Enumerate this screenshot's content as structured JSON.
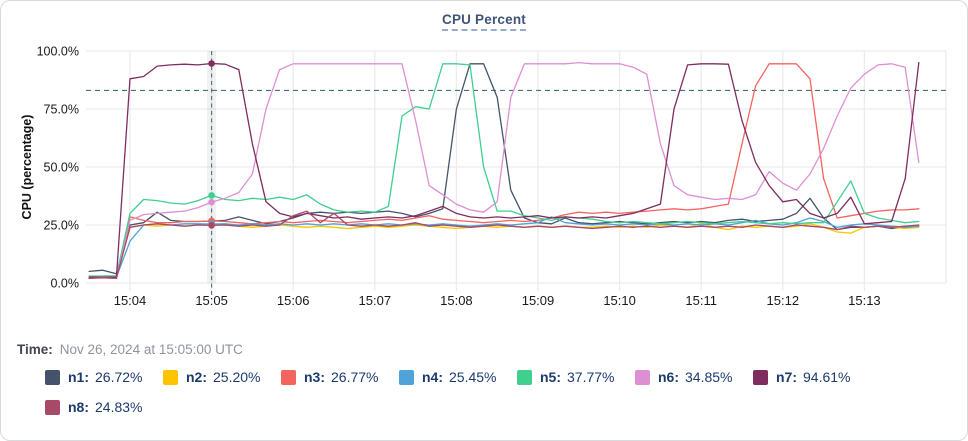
{
  "card": {
    "title": "CPU Percent"
  },
  "footer": {
    "time_label": "Time:",
    "time_value": "Nov 26, 2024 at 15:05:00 UTC"
  },
  "legend": {
    "rows": [
      [
        {
          "label": "n1:",
          "value": "26.72%",
          "color": "#44536b"
        },
        {
          "label": "n2:",
          "value": "25.20%",
          "color": "#ffc400"
        },
        {
          "label": "n3:",
          "value": "26.77%",
          "color": "#f4645f"
        },
        {
          "label": "n4:",
          "value": "25.45%",
          "color": "#4ea3d8"
        },
        {
          "label": "n5:",
          "value": "37.77%",
          "color": "#3fcf8e"
        },
        {
          "label": "n6:",
          "value": "34.85%",
          "color": "#de8fd3"
        },
        {
          "label": "n7:",
          "value": "94.61%",
          "color": "#7e2d5e"
        }
      ],
      [
        {
          "label": "n8:",
          "value": "24.83%",
          "color": "#a74a68"
        }
      ]
    ]
  },
  "chart_data": {
    "type": "line",
    "title": "CPU Percent",
    "ylabel": "CPU (percentage)",
    "ylim": [
      0,
      100
    ],
    "grid": true,
    "threshold_percent": 83,
    "crosshair": {
      "time": "15:05:00",
      "t_seconds": 60
    },
    "x_tick_labels": [
      "15:04",
      "15:05",
      "15:06",
      "15:07",
      "15:08",
      "15:09",
      "15:10",
      "15:11",
      "15:12",
      "15:13"
    ],
    "y_ticks": [
      {
        "value": 100,
        "label": "100.0%"
      },
      {
        "value": 75,
        "label": "75.0%"
      },
      {
        "value": 50,
        "label": "50.0%"
      },
      {
        "value": 25,
        "label": "25.0%"
      },
      {
        "value": 0,
        "label": "0.0%"
      }
    ],
    "x_start_seconds": -30,
    "sample_interval_seconds": 10,
    "series": [
      {
        "name": "n1",
        "color": "#44536b",
        "values": [
          5,
          5.5,
          4,
          25,
          26,
          30.5,
          27,
          26.5,
          26.5,
          26.72,
          27,
          28.5,
          27,
          25.5,
          26.5,
          28,
          30,
          30.5,
          30,
          30.5,
          30,
          30.5,
          31,
          30,
          28.5,
          30,
          32,
          75,
          94.5,
          94.5,
          80,
          40,
          28,
          26,
          25.5,
          28,
          26,
          25.5,
          26,
          26.5,
          26,
          25.5,
          26,
          26.5,
          26,
          26.5,
          26,
          27,
          27.5,
          26.5,
          27,
          27.5,
          30,
          36.5,
          28,
          23,
          24,
          24,
          24.5,
          23.5,
          24,
          24.5
        ]
      },
      {
        "name": "n2",
        "color": "#ffc400",
        "values": [
          2,
          2,
          2.5,
          24,
          25,
          24.5,
          25,
          24.5,
          25,
          25.2,
          25,
          24.5,
          24,
          24.5,
          25,
          24.5,
          24,
          24.5,
          24,
          23.5,
          24,
          24.5,
          24,
          24.5,
          25,
          24.5,
          24,
          23.5,
          24,
          24.5,
          24,
          24.5,
          24,
          24.5,
          24,
          24.5,
          24,
          24,
          24.5,
          24,
          24.5,
          24,
          25,
          24.5,
          24,
          25.5,
          24,
          23,
          24.5,
          24,
          24.5,
          24,
          24.5,
          25.5,
          24,
          22,
          21.5,
          24,
          24.5,
          24,
          23.5,
          24
        ]
      },
      {
        "name": "n3",
        "color": "#f4645f",
        "values": [
          2.5,
          3,
          3,
          28.5,
          27,
          26,
          26,
          26.5,
          26.5,
          26.77,
          26.5,
          26,
          25.5,
          26,
          26.5,
          26,
          26.5,
          27,
          26.5,
          26,
          26.5,
          27,
          27.5,
          27,
          28,
          29,
          27.5,
          27,
          26.5,
          26,
          26.5,
          27,
          26.5,
          27,
          28,
          29.5,
          30.5,
          30,
          30.5,
          30,
          30.5,
          31,
          31.5,
          32,
          31.5,
          32,
          33,
          34,
          60,
          85,
          94.5,
          94.5,
          94.5,
          88,
          45,
          28,
          29,
          30,
          31,
          31.5,
          31.5,
          32
        ]
      },
      {
        "name": "n4",
        "color": "#4ea3d8",
        "values": [
          2,
          2.5,
          2.5,
          18,
          25,
          25.5,
          25,
          25.5,
          25.5,
          25.45,
          25.5,
          25,
          25.5,
          25,
          25.5,
          25,
          25.5,
          25,
          25.5,
          25,
          25.5,
          25,
          25.5,
          25,
          25.5,
          25,
          25.5,
          25,
          24.5,
          25,
          25.5,
          25,
          25.5,
          26,
          28.5,
          26,
          25.5,
          25,
          25.5,
          25,
          25.5,
          25,
          25.5,
          25,
          25.5,
          25,
          25.5,
          25,
          26,
          27,
          25.5,
          25,
          26,
          28,
          26.5,
          24,
          25,
          25.5,
          25,
          24.5,
          24,
          24.5
        ]
      },
      {
        "name": "n5",
        "color": "#3fcf8e",
        "values": [
          3,
          3,
          3,
          30,
          36,
          35.5,
          34.5,
          34,
          35.5,
          37.77,
          36,
          35.5,
          36.5,
          36,
          37,
          36,
          38,
          34,
          31.5,
          30.5,
          31,
          30.5,
          33,
          72,
          76,
          75,
          94.5,
          94.5,
          94,
          50,
          31,
          31,
          29,
          28,
          27,
          28.5,
          28,
          27.5,
          26.5,
          26,
          26.5,
          26,
          25.5,
          26,
          26.5,
          26,
          25.5,
          26,
          26.5,
          26,
          25.5,
          26,
          25.5,
          26,
          26,
          35,
          44,
          30,
          28,
          27,
          26,
          26.5
        ]
      },
      {
        "name": "n6",
        "color": "#de8fd3",
        "values": [
          2,
          2,
          2,
          27,
          29.5,
          30,
          30.5,
          31,
          32.5,
          34.85,
          36.5,
          39,
          47,
          75,
          92,
          94.5,
          94.5,
          94.5,
          94.5,
          94.5,
          94.5,
          94.5,
          94.5,
          94.5,
          70,
          42,
          38,
          34,
          31.5,
          30.5,
          35,
          80,
          94.5,
          94.5,
          94.5,
          94.5,
          95,
          94.5,
          94.5,
          94.5,
          93,
          90,
          60,
          42,
          38,
          37,
          36,
          36.5,
          36,
          38,
          48,
          43,
          40,
          47,
          58,
          72,
          84,
          90,
          94,
          94.5,
          93,
          52
        ]
      },
      {
        "name": "n7",
        "color": "#7e2d5e",
        "values": [
          2.5,
          2.5,
          2.5,
          88,
          89,
          93.5,
          94,
          94.3,
          94,
          94.61,
          94.3,
          92,
          60,
          35,
          30,
          28.5,
          30,
          29,
          28,
          28.5,
          27.5,
          28,
          28.5,
          28,
          29,
          31,
          33,
          30,
          28.5,
          28,
          28.5,
          28,
          28.5,
          29,
          28,
          28.5,
          28,
          28.5,
          28,
          29,
          30,
          32,
          34,
          75,
          94,
          94.5,
          94.5,
          94.3,
          70,
          52,
          42,
          35,
          36,
          30,
          28,
          30,
          37,
          25.5,
          26,
          26.5,
          45,
          95
        ]
      },
      {
        "name": "n8",
        "color": "#a74a68",
        "values": [
          2,
          2.5,
          2,
          24,
          25,
          25.5,
          25,
          24.5,
          25,
          24.83,
          25,
          24.5,
          25,
          24.5,
          25,
          29,
          31,
          26,
          30,
          25,
          24.5,
          25,
          24.5,
          25,
          26,
          24.5,
          25,
          24.5,
          24,
          24.5,
          25,
          24.5,
          24,
          24.5,
          24,
          24.5,
          24,
          23.5,
          24,
          24.5,
          24,
          24.5,
          24,
          24.5,
          24,
          24.5,
          24,
          24.5,
          24,
          25,
          24.5,
          24,
          25,
          24.5,
          24,
          23,
          24.5,
          24,
          24.5,
          24,
          24.5,
          25
        ]
      }
    ],
    "colors": {
      "grid": "#ececec",
      "dashed_lines": "#47727f",
      "tick_text": "#17191e",
      "axis_label": "#111111"
    }
  }
}
